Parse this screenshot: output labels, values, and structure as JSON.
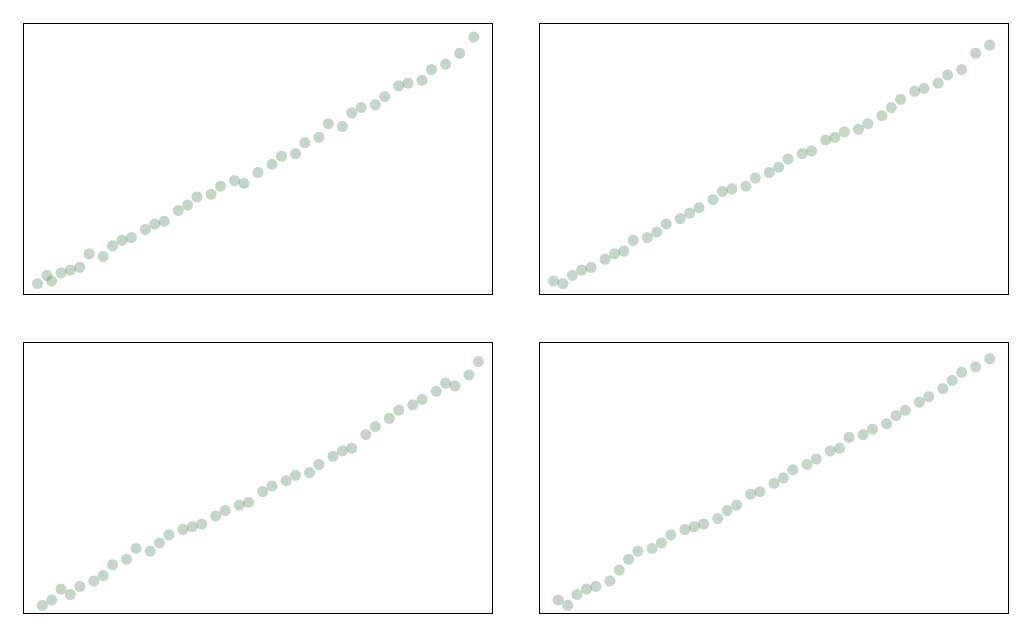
{
  "chart_data": [
    {
      "type": "scatter",
      "color": "#2f6b3a",
      "xlim": [
        0,
        100
      ],
      "ylim": [
        0,
        100
      ],
      "x": [
        3,
        5,
        6,
        8,
        10,
        12,
        14,
        17,
        19,
        21,
        23,
        26,
        28,
        30,
        33,
        35,
        37,
        40,
        42,
        45,
        47,
        50,
        53,
        55,
        58,
        60,
        63,
        65,
        68,
        70,
        72,
        75,
        77,
        80,
        82,
        85,
        87,
        90,
        93,
        96
      ],
      "values": [
        4,
        7,
        5,
        8,
        9,
        10,
        15,
        14,
        18,
        20,
        21,
        24,
        26,
        27,
        31,
        33,
        36,
        37,
        40,
        42,
        41,
        45,
        48,
        51,
        52,
        56,
        58,
        63,
        62,
        67,
        69,
        70,
        73,
        77,
        78,
        79,
        83,
        85,
        89,
        95
      ]
    },
    {
      "type": "scatter",
      "color": "#2f6b3a",
      "xlim": [
        0,
        100
      ],
      "ylim": [
        0,
        100
      ],
      "x": [
        3,
        5,
        7,
        9,
        11,
        14,
        16,
        18,
        20,
        23,
        25,
        27,
        30,
        32,
        34,
        37,
        39,
        41,
        44,
        46,
        49,
        51,
        53,
        56,
        58,
        61,
        63,
        65,
        68,
        70,
        73,
        75,
        77,
        80,
        82,
        85,
        87,
        90,
        93,
        96
      ],
      "values": [
        5,
        4,
        7,
        9,
        10,
        13,
        15,
        16,
        20,
        21,
        23,
        26,
        28,
        30,
        32,
        35,
        38,
        39,
        40,
        43,
        45,
        47,
        50,
        52,
        53,
        57,
        58,
        60,
        61,
        63,
        66,
        69,
        72,
        75,
        76,
        78,
        81,
        83,
        89,
        92
      ]
    },
    {
      "type": "scatter",
      "color": "#2f6b3a",
      "xlim": [
        0,
        100
      ],
      "ylim": [
        0,
        100
      ],
      "x": [
        4,
        6,
        8,
        10,
        12,
        15,
        17,
        19,
        22,
        24,
        27,
        29,
        31,
        34,
        36,
        38,
        41,
        43,
        46,
        48,
        51,
        53,
        56,
        58,
        61,
        63,
        66,
        68,
        70,
        73,
        75,
        78,
        80,
        83,
        85,
        88,
        90,
        92,
        95,
        97
      ],
      "values": [
        3,
        5,
        9,
        7,
        10,
        12,
        14,
        18,
        20,
        24,
        23,
        26,
        29,
        31,
        32,
        33,
        36,
        38,
        40,
        41,
        45,
        47,
        49,
        51,
        52,
        55,
        58,
        60,
        61,
        66,
        69,
        72,
        75,
        77,
        79,
        82,
        85,
        84,
        88,
        93
      ]
    },
    {
      "type": "scatter",
      "color": "#2f6b3a",
      "xlim": [
        0,
        100
      ],
      "ylim": [
        0,
        100
      ],
      "x": [
        4,
        6,
        8,
        10,
        12,
        15,
        17,
        19,
        21,
        24,
        26,
        28,
        31,
        33,
        35,
        38,
        40,
        42,
        45,
        47,
        50,
        52,
        54,
        57,
        59,
        62,
        64,
        66,
        69,
        71,
        74,
        76,
        78,
        81,
        83,
        86,
        88,
        90,
        93,
        96
      ],
      "values": [
        5,
        3,
        7,
        9,
        10,
        12,
        16,
        20,
        23,
        24,
        26,
        29,
        31,
        32,
        33,
        35,
        38,
        40,
        44,
        45,
        48,
        50,
        53,
        55,
        57,
        60,
        61,
        65,
        66,
        68,
        70,
        73,
        75,
        78,
        80,
        83,
        86,
        89,
        91,
        94
      ]
    }
  ]
}
